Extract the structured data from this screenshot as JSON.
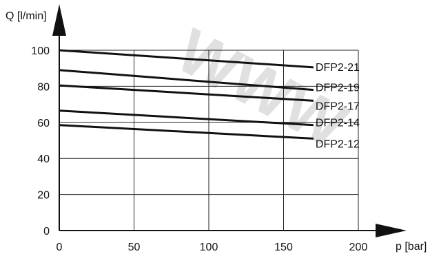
{
  "chart_data": {
    "type": "line",
    "xlabel": "p [bar]",
    "ylabel": "Q [l/min]",
    "xlim": [
      0,
      200
    ],
    "ylim": [
      0,
      100
    ],
    "xticks": [
      0,
      50,
      100,
      150,
      200
    ],
    "yticks": [
      0,
      20,
      40,
      60,
      80,
      100
    ],
    "grid": true,
    "watermark": "WWW",
    "series": [
      {
        "name": "DFP2-21",
        "x": [
          0,
          170
        ],
        "y": [
          100,
          90.5
        ]
      },
      {
        "name": "DFP2-19",
        "x": [
          0,
          170
        ],
        "y": [
          89,
          78
        ]
      },
      {
        "name": "DFP2-17",
        "x": [
          0,
          170
        ],
        "y": [
          80.5,
          72
        ]
      },
      {
        "name": "DFP2-14",
        "x": [
          0,
          170
        ],
        "y": [
          66.5,
          58.5
        ]
      },
      {
        "name": "DFP2-12",
        "x": [
          0,
          170
        ],
        "y": [
          58.5,
          51
        ]
      }
    ]
  }
}
